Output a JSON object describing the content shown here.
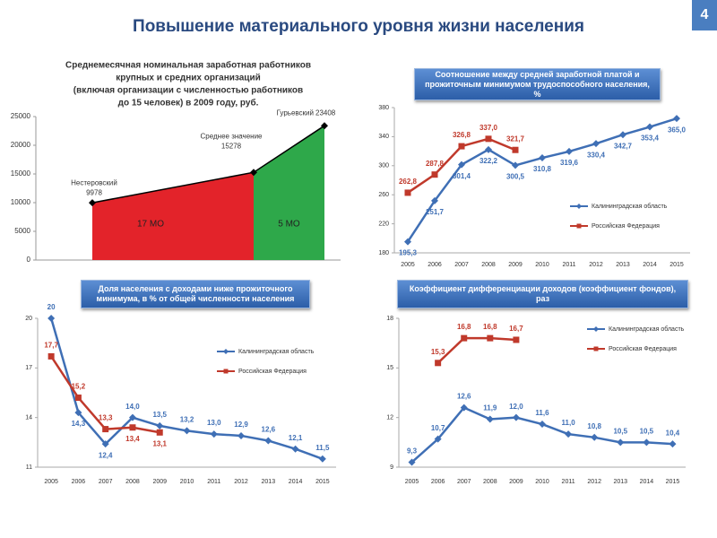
{
  "header": {
    "title": "Повышение материального уровня жизни населения",
    "page_number": "4"
  },
  "chart_data": [
    {
      "type": "area",
      "title": [
        "Среднемесячная номинальная заработная работников",
        "крупных и средних организаций",
        "(включая организации с численностью работников",
        "до 15 человек) в 2009 году, руб."
      ],
      "categories": [
        "Нестеровский",
        "Среднее значение",
        "Гурьевский"
      ],
      "values": [
        9978,
        15278,
        23408
      ],
      "value_labels": [
        "9978",
        "15278",
        "23408"
      ],
      "ylim": [
        0,
        25000
      ],
      "yticks": [
        0,
        5000,
        10000,
        15000,
        20000,
        25000
      ],
      "color": "#000000",
      "regions": [
        {
          "label": "17 МО",
          "color": "#e3232a"
        },
        {
          "label": "5 МО",
          "color": "#2ea84a"
        }
      ]
    },
    {
      "type": "line",
      "title": "Соотношение между средней заработной платой и прожиточным минимумом трудоспособного населения, %",
      "categories": [
        "2005",
        "2006",
        "2007",
        "2008",
        "2009",
        "2010",
        "2011",
        "2012",
        "2013",
        "2014",
        "2015"
      ],
      "series": [
        {
          "name": "Калининградская область",
          "color": "#3f6fb5",
          "values": [
            195.3,
            251.7,
            301.4,
            322.2,
            300.5,
            310.8,
            319.6,
            330.4,
            342.7,
            353.4,
            365.0
          ],
          "value_labels": [
            "195,3",
            "251,7",
            "301,4",
            "322,2",
            "300,5",
            "310,8",
            "319,6",
            "330,4",
            "342,7",
            "353,4",
            "365,0"
          ]
        },
        {
          "name": "Российская Федерация",
          "color": "#c0392b",
          "values": [
            262.8,
            287.8,
            326.8,
            337.0,
            321.7,
            null,
            null,
            null,
            null,
            null,
            null
          ],
          "value_labels": [
            "262,8",
            "287,8",
            "326,8",
            "337,0",
            "321,7",
            null,
            null,
            null,
            null,
            null,
            null
          ]
        }
      ],
      "ylim": [
        180,
        380
      ],
      "yticks": [
        180,
        220,
        260,
        300,
        340,
        380
      ]
    },
    {
      "type": "line",
      "title": "Доля населения с доходами ниже прожиточного минимума, в % от общей численности населения",
      "categories": [
        "2005",
        "2006",
        "2007",
        "2008",
        "2009",
        "2010",
        "2011",
        "2012",
        "2013",
        "2014",
        "2015"
      ],
      "series": [
        {
          "name": "Калининградская область",
          "color": "#3f6fb5",
          "values": [
            20,
            14.3,
            12.4,
            14.0,
            13.5,
            13.2,
            13.0,
            12.9,
            12.6,
            12.1,
            11.5
          ],
          "value_labels": [
            "20",
            "14,3",
            "12,4",
            "14,0",
            "13,5",
            "13,2",
            "13,0",
            "12,9",
            "12,6",
            "12,1",
            "11,5"
          ]
        },
        {
          "name": "Российская Федерация",
          "color": "#c0392b",
          "values": [
            17.7,
            15.2,
            13.3,
            13.4,
            13.1,
            null,
            null,
            null,
            null,
            null,
            null
          ],
          "value_labels": [
            "17,7",
            "15,2",
            "13,3",
            "13,4",
            "13,1",
            null,
            null,
            null,
            null,
            null,
            null
          ]
        }
      ],
      "ylim": [
        11,
        20
      ],
      "yticks": [
        11,
        14,
        17,
        20
      ]
    },
    {
      "type": "line",
      "title": "Коэффициент дифференциации доходов (коэффициент фондов), раз",
      "categories": [
        "2005",
        "2006",
        "2007",
        "2008",
        "2009",
        "2010",
        "2011",
        "2012",
        "2013",
        "2014",
        "2015"
      ],
      "series": [
        {
          "name": "Калининградская область",
          "color": "#3f6fb5",
          "values": [
            9.3,
            10.7,
            12.6,
            11.9,
            12.0,
            11.6,
            11.0,
            10.8,
            10.5,
            10.5,
            10.4
          ],
          "value_labels": [
            "9,3",
            "10,7",
            "12,6",
            "11,9",
            "12,0",
            "11,6",
            "11,0",
            "10,8",
            "10,5",
            "10,5",
            "10,4"
          ]
        },
        {
          "name": "Российская Федерация",
          "color": "#c0392b",
          "values": [
            null,
            15.3,
            16.8,
            16.8,
            16.7,
            null,
            null,
            null,
            null,
            null,
            null
          ],
          "value_labels": [
            null,
            "15,3",
            "16,8",
            "16,8",
            "16,7",
            null,
            null,
            null,
            null,
            null,
            null
          ]
        }
      ],
      "ylim": [
        9,
        18
      ],
      "yticks": [
        9,
        12,
        15,
        18
      ]
    }
  ]
}
